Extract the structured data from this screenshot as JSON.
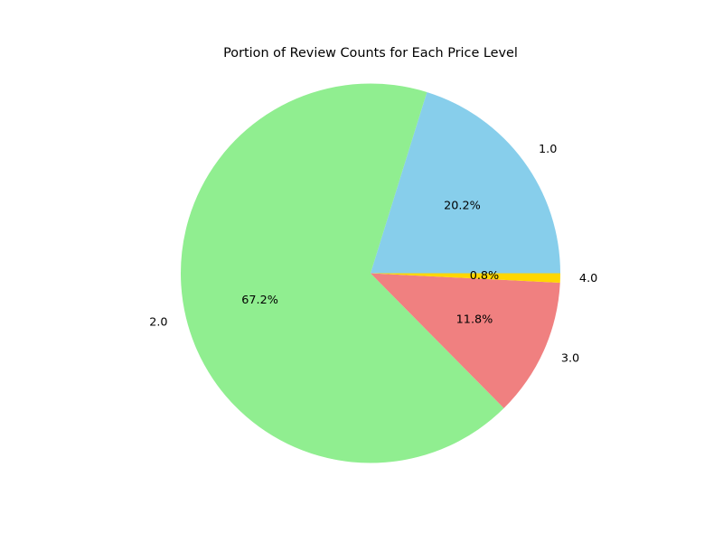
{
  "chart_data": {
    "type": "pie",
    "title": "Portion of Review Counts for Each Price Level",
    "categories": [
      "1.0",
      "2.0",
      "3.0",
      "4.0"
    ],
    "values": [
      20.2,
      67.2,
      11.8,
      0.8
    ],
    "value_labels": [
      "20.2%",
      "67.2%",
      "11.8%",
      "0.8%"
    ],
    "colors": [
      "#87CEEB",
      "#90EE90",
      "#F08080",
      "#FFD700"
    ],
    "start_angle": 0,
    "direction": "counterclockwise",
    "legend": "none"
  }
}
